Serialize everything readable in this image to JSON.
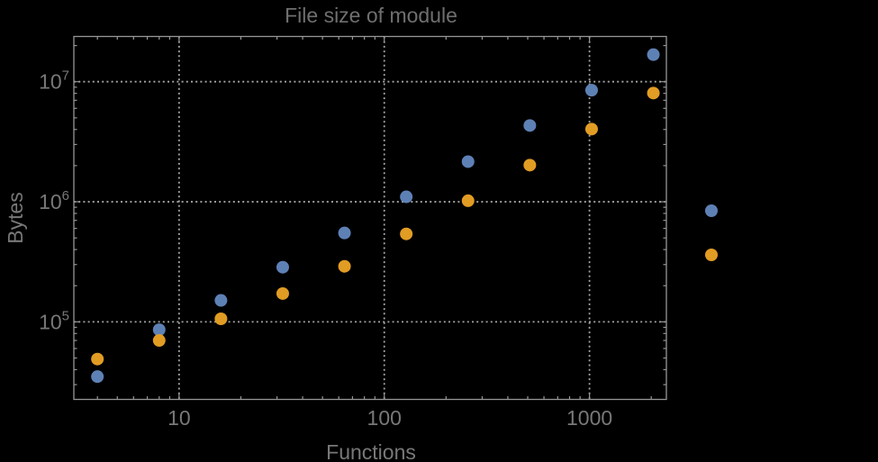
{
  "chart_data": {
    "type": "scatter",
    "title": "File size of module",
    "xlabel": "Functions",
    "ylabel": "Bytes",
    "x_scale": "log",
    "y_scale": "log",
    "grid": "dotted lines at major ticks only",
    "frame": "full box frame with inward major and minor log ticks on all four edges",
    "xlim": [
      3.07,
      2370
    ],
    "ylim": [
      22600,
      23800000
    ],
    "x_ticks": [
      {
        "label": "10",
        "value": 10
      },
      {
        "label": "100",
        "value": 100
      },
      {
        "label": "1000",
        "value": 1000
      }
    ],
    "y_ticks": [
      {
        "mantissa": "10",
        "exponent": "5",
        "value": 100000
      },
      {
        "mantissa": "10",
        "exponent": "6",
        "value": 1000000
      },
      {
        "mantissa": "10",
        "exponent": "7",
        "value": 10000000
      }
    ],
    "x": [
      4,
      8,
      16,
      32,
      64,
      128,
      256,
      512,
      1024,
      2048
    ],
    "series": [
      {
        "name": "blue-series",
        "color": "#5E81B5",
        "values": [
          35000,
          86000,
          151000,
          285000,
          550000,
          1100000,
          2160000,
          4320000,
          8500000,
          16800000
        ]
      },
      {
        "name": "orange-series",
        "color": "#E19C24",
        "values": [
          49000,
          70000,
          106000,
          172000,
          290000,
          540000,
          1020000,
          2020000,
          4030000,
          8040000
        ]
      }
    ],
    "legend": {
      "position": "right of frame, vertically centered",
      "labels_visible": false,
      "entries": [
        {
          "series": "blue-series",
          "color": "#5E81B5"
        },
        {
          "series": "orange-series",
          "color": "#E19C24"
        }
      ]
    },
    "colors": {
      "background": "#000000",
      "frame": "#969696",
      "grid": "#A3A3A3",
      "title_text": "#6F6F6F",
      "label_text": "#787878"
    }
  }
}
